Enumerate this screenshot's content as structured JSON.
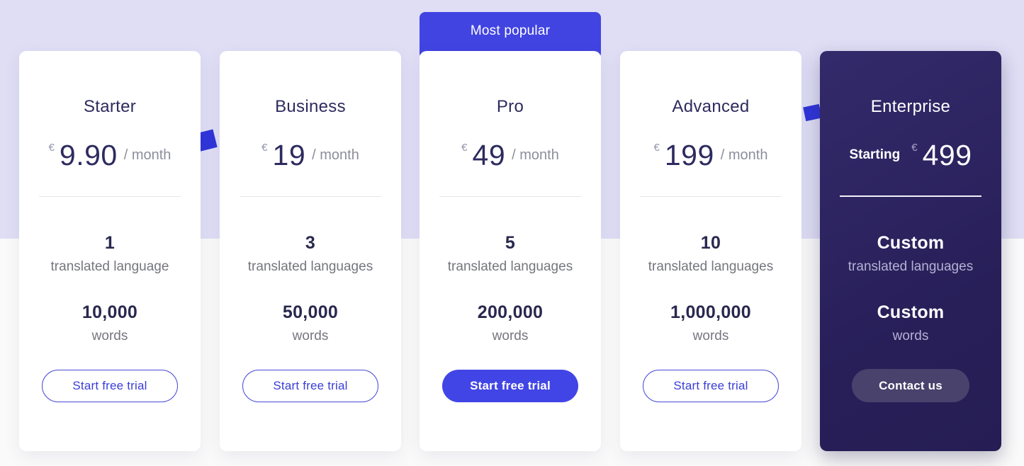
{
  "theme": {
    "background_top": "#DFDEF5",
    "background_bottom": "#FAFAFA",
    "accent_blue": "#4245E1",
    "decorative_blue": "#3036D9",
    "dark_navy_text": "#2D2B5E",
    "enterprise_card_bg": "#2B2262",
    "enterprise_pill_bg": "#48426C"
  },
  "most_popular_badge": {
    "label": "Most popular"
  },
  "plans": [
    {
      "name": "Starter",
      "currency": "€",
      "price": "9.90",
      "period": "/ month",
      "features": [
        {
          "value": "1",
          "label": "translated language"
        },
        {
          "value": "10,000",
          "label": "words"
        }
      ],
      "cta": "Start free trial"
    },
    {
      "name": "Business",
      "currency": "€",
      "price": "19",
      "period": "/ month",
      "features": [
        {
          "value": "3",
          "label": "translated languages"
        },
        {
          "value": "50,000",
          "label": "words"
        }
      ],
      "cta": "Start free trial"
    },
    {
      "name": "Pro",
      "currency": "€",
      "price": "49",
      "period": "/ month",
      "most_popular": true,
      "features": [
        {
          "value": "5",
          "label": "translated languages"
        },
        {
          "value": "200,000",
          "label": "words"
        }
      ],
      "cta": "Start free trial"
    },
    {
      "name": "Advanced",
      "currency": "€",
      "price": "199",
      "period": "/ month",
      "features": [
        {
          "value": "10",
          "label": "translated languages"
        },
        {
          "value": "1,000,000",
          "label": "words"
        }
      ],
      "cta": "Start free trial"
    },
    {
      "name": "Enterprise",
      "price_prefix": "Starting",
      "currency": "€",
      "price": "499",
      "features": [
        {
          "value": "Custom",
          "label": "translated languages"
        },
        {
          "value": "Custom",
          "label": "words"
        }
      ],
      "cta": "Contact us"
    }
  ]
}
